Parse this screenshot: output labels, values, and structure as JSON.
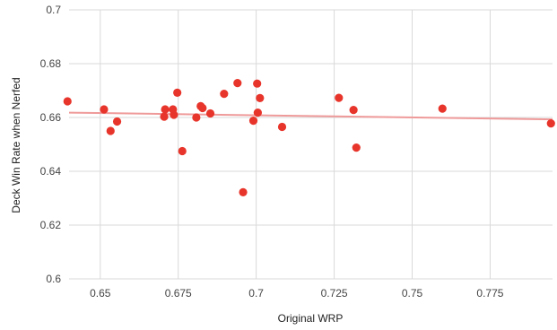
{
  "chart_data": {
    "type": "scatter",
    "title": "",
    "xlabel": "Original WRP",
    "ylabel": "Deck Win Rate when Nerfed",
    "xlim": [
      0.64,
      0.795
    ],
    "ylim": [
      0.6,
      0.7
    ],
    "x_ticks": [
      0.65,
      0.675,
      0.7,
      0.725,
      0.75,
      0.775
    ],
    "x_tick_labels": [
      "0.65",
      "0.675",
      "0.7",
      "0.725",
      "0.75",
      "0.775"
    ],
    "y_ticks": [
      0.6,
      0.62,
      0.64,
      0.66,
      0.68,
      0.7
    ],
    "y_tick_labels": [
      "0.6",
      "0.62",
      "0.64",
      "0.66",
      "0.68",
      "0.7"
    ],
    "grid": true,
    "legend": "none",
    "point_color": "#e8352b",
    "trendline_color": "#ef9a9a",
    "series": [
      {
        "points": [
          [
            0.6395,
            0.666
          ],
          [
            0.6512,
            0.663
          ],
          [
            0.6533,
            0.655
          ],
          [
            0.6554,
            0.6585
          ],
          [
            0.6705,
            0.6603
          ],
          [
            0.6708,
            0.663
          ],
          [
            0.6733,
            0.663
          ],
          [
            0.6736,
            0.661
          ],
          [
            0.6747,
            0.6692
          ],
          [
            0.6763,
            0.6475
          ],
          [
            0.6808,
            0.66
          ],
          [
            0.6822,
            0.6642
          ],
          [
            0.6828,
            0.6635
          ],
          [
            0.6853,
            0.6615
          ],
          [
            0.6897,
            0.6688
          ],
          [
            0.694,
            0.6728
          ],
          [
            0.6958,
            0.6322
          ],
          [
            0.6991,
            0.6588
          ],
          [
            0.7003,
            0.6726
          ],
          [
            0.7005,
            0.6618
          ],
          [
            0.7012,
            0.6672
          ],
          [
            0.7083,
            0.6565
          ],
          [
            0.7265,
            0.6673
          ],
          [
            0.7312,
            0.6628
          ],
          [
            0.7321,
            0.6488
          ],
          [
            0.7597,
            0.6633
          ],
          [
            0.7945,
            0.6578
          ]
        ]
      }
    ],
    "trendline": {
      "x": [
        0.64,
        0.795
      ],
      "y": [
        0.6618,
        0.6593
      ]
    }
  }
}
